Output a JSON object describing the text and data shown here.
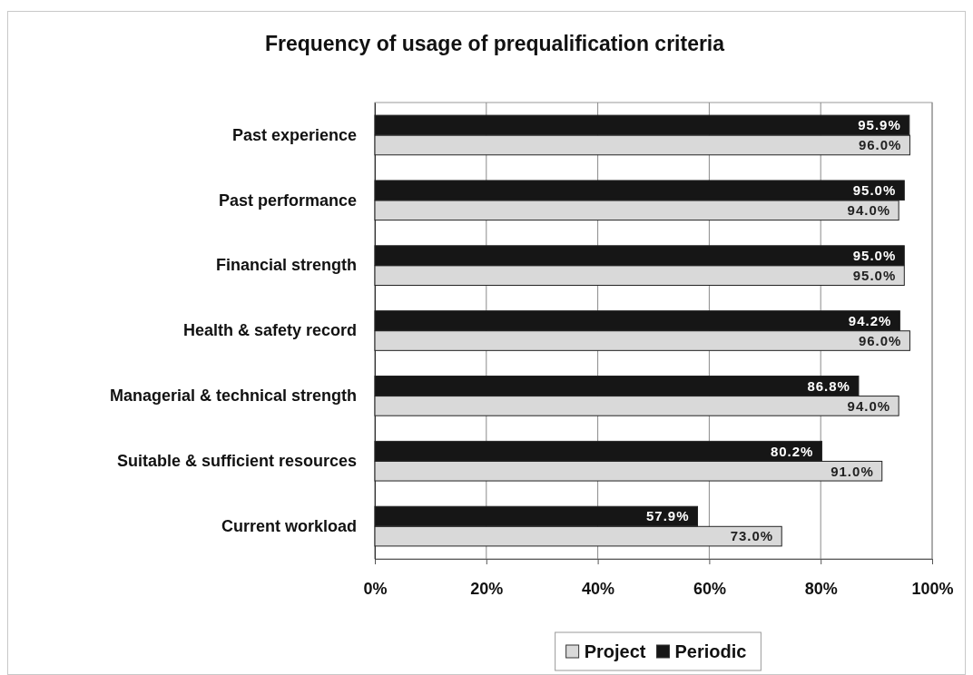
{
  "chart_data": {
    "type": "bar",
    "orientation": "horizontal",
    "title": "Frequency of usage of prequalification criteria",
    "categories": [
      "Past experience",
      "Past performance",
      "Financial strength",
      "Health & safety record",
      "Managerial & technical strength",
      "Suitable & sufficient resources",
      "Current workload"
    ],
    "series": [
      {
        "name": "Project",
        "color": "#d9d9d9",
        "values": [
          96.0,
          94.0,
          95.0,
          96.0,
          94.0,
          91.0,
          73.0
        ],
        "value_labels": [
          "96.0%",
          "94.0%",
          "95.0%",
          "96.0%",
          "94.0%",
          "91.0%",
          "73.0%"
        ]
      },
      {
        "name": "Periodic",
        "color": "#161616",
        "values": [
          95.9,
          95.0,
          95.0,
          94.2,
          86.8,
          80.2,
          57.9
        ],
        "value_labels": [
          "95.9%",
          "95.0%",
          "95.0%",
          "94.2%",
          "86.8%",
          "80.2%",
          "57.9%"
        ]
      }
    ],
    "xlim": [
      0,
      100
    ],
    "xticks": [
      {
        "value": 0,
        "label": "0%"
      },
      {
        "value": 20,
        "label": "20%"
      },
      {
        "value": 40,
        "label": "40%"
      },
      {
        "value": 60,
        "label": "60%"
      },
      {
        "value": 80,
        "label": "80%"
      },
      {
        "value": 100,
        "label": "100%"
      }
    ],
    "grid": "x",
    "legend": "bottom"
  }
}
